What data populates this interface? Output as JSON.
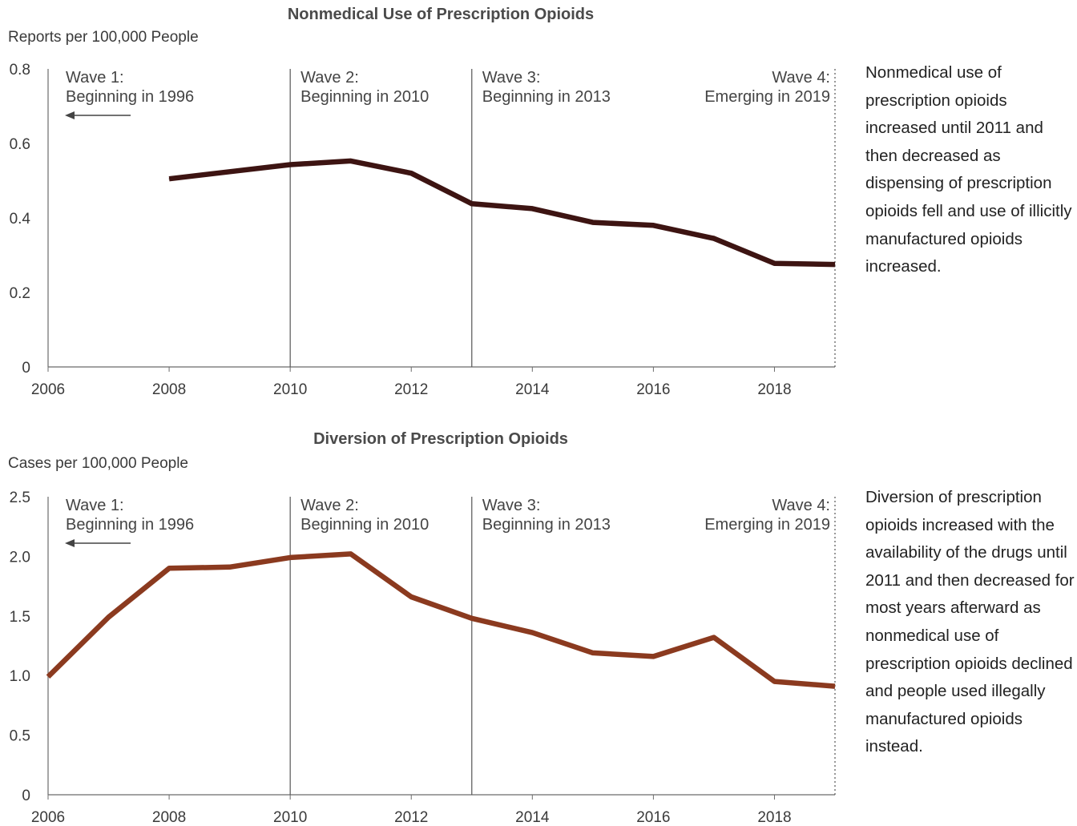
{
  "charts": [
    {
      "title": "Nonmedical Use of Prescription Opioids",
      "ylabel": "Reports per 100,000 People",
      "note": "Nonmedical use of prescription opioids increased until 2011 and then decreased as dispensing of prescription opioids fell and use of illicitly manufactured opioids increased."
    },
    {
      "title": "Diversion of Prescription Opioids",
      "ylabel": "Cases per 100,000 People",
      "note": "Diversion of prescription opioids increased with the availability of the drugs until 2011 and then decreased for most years afterward as nonmedical use of prescription opioids declined and people used illegally manufactured opioids instead."
    }
  ],
  "chart_data": [
    {
      "type": "line",
      "title": "Nonmedical Use of Prescription Opioids",
      "ylabel": "Reports per 100,000 People",
      "xlim": [
        2006,
        2019
      ],
      "ylim": [
        0,
        0.8
      ],
      "x_ticks": [
        "2006",
        "2008",
        "2010",
        "2012",
        "2014",
        "2016",
        "2018"
      ],
      "x_tick_values": [
        2006,
        2008,
        2010,
        2012,
        2014,
        2016,
        2018
      ],
      "y_ticks": [
        "0",
        "0.2",
        "0.4",
        "0.6",
        "0.8"
      ],
      "y_tick_values": [
        0,
        0.2,
        0.4,
        0.6,
        0.8
      ],
      "series": [
        {
          "x": [
            2008,
            2009,
            2010,
            2011,
            2012,
            2013,
            2014,
            2015,
            2016,
            2017,
            2018,
            2019
          ],
          "values": [
            0.505,
            0.524,
            0.543,
            0.553,
            0.52,
            0.438,
            0.425,
            0.388,
            0.38,
            0.345,
            0.278,
            0.275
          ],
          "color": "#3d1412"
        }
      ],
      "waves": [
        {
          "line1": "Wave 1:",
          "line2": "Beginning in 1996",
          "arrow": true
        },
        {
          "x": 2010,
          "line1": "Wave 2:",
          "line2": "Beginning in 2010",
          "style": "solid"
        },
        {
          "x": 2013,
          "line1": "Wave 3:",
          "line2": "Beginning in 2013",
          "style": "solid"
        },
        {
          "x": 2019,
          "line1": "Wave 4:",
          "line2": "Emerging in 2019",
          "style": "dotted"
        }
      ],
      "grid": false
    },
    {
      "type": "line",
      "title": "Diversion of Prescription Opioids",
      "ylabel": "Cases per 100,000 People",
      "xlim": [
        2006,
        2019
      ],
      "ylim": [
        0,
        2.5
      ],
      "x_ticks": [
        "2006",
        "2008",
        "2010",
        "2012",
        "2014",
        "2016",
        "2018"
      ],
      "x_tick_values": [
        2006,
        2008,
        2010,
        2012,
        2014,
        2016,
        2018
      ],
      "y_ticks": [
        "0",
        "0.5",
        "1.0",
        "1.5",
        "2.0",
        "2.5"
      ],
      "y_tick_values": [
        0,
        0.5,
        1.0,
        1.5,
        2.0,
        2.5
      ],
      "series": [
        {
          "x": [
            2006,
            2007,
            2008,
            2009,
            2010,
            2011,
            2012,
            2013,
            2014,
            2015,
            2016,
            2017,
            2018,
            2019
          ],
          "values": [
            0.99,
            1.49,
            1.9,
            1.91,
            1.99,
            2.02,
            1.66,
            1.48,
            1.36,
            1.19,
            1.16,
            1.32,
            0.95,
            0.91
          ],
          "color": "#8b3a1f"
        }
      ],
      "waves": [
        {
          "line1": "Wave 1:",
          "line2": "Beginning in 1996",
          "arrow": true
        },
        {
          "x": 2010,
          "line1": "Wave 2:",
          "line2": "Beginning in 2010",
          "style": "solid"
        },
        {
          "x": 2013,
          "line1": "Wave 3:",
          "line2": "Beginning in 2013",
          "style": "solid"
        },
        {
          "x": 2019,
          "line1": "Wave 4:",
          "line2": "Emerging in 2019",
          "style": "dotted"
        }
      ],
      "grid": false
    }
  ]
}
